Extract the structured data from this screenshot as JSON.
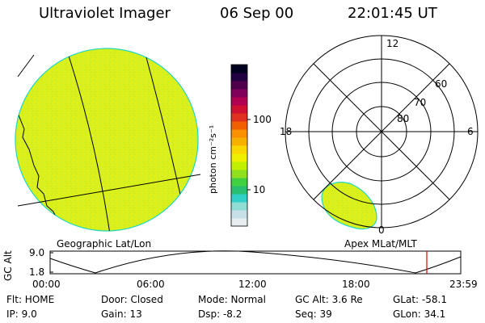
{
  "header": {
    "title": "Ultraviolet Imager",
    "date": "06 Sep 00",
    "time": "22:01:45 UT"
  },
  "colorbar": {
    "unit_label": "photon cm⁻²s⁻¹",
    "tick_100": "100",
    "tick_10": "10",
    "colors": [
      "#e8eef0",
      "#c8e0e8",
      "#90ddd6",
      "#30d0c8",
      "#28c070",
      "#40d040",
      "#90e020",
      "#c0f000",
      "#eef000",
      "#f8d800",
      "#f8b000",
      "#f89000",
      "#f06000",
      "#e03020",
      "#d01030",
      "#b00050",
      "#80005a",
      "#50004a",
      "#200040",
      "#000020"
    ]
  },
  "left_panel": {
    "caption": "Geographic Lat/Lon",
    "disk_fill": "#d8f020",
    "disk_edge": "#20d8c0"
  },
  "right_panel": {
    "caption": "Apex MLat/MLT",
    "mlt_12": "12",
    "mlt_18": "18",
    "mlt_6": "6",
    "mlt_0": "0",
    "lat_60": "60",
    "lat_70": "70",
    "lat_80": "80"
  },
  "altitude_plot": {
    "ylabel": "GC Alt",
    "y_top": "9.0",
    "y_bottom": "1.8",
    "x_ticks": [
      "00:00",
      "06:00",
      "12:00",
      "18:00",
      "23:59"
    ],
    "current_time_marker_color": "#e00000"
  },
  "info": {
    "flt": "Flt: HOME",
    "ip": "IP:  9.0",
    "door": "Door: Closed",
    "gain": "Gain: 13",
    "mode": "Mode: Normal",
    "dsp": "Dsp:   -8.2",
    "gcalt": "GC Alt: 3.6 Re",
    "seq": "Seq: 39",
    "glat": "GLat: -58.1",
    "glon": "GLon:  34.1"
  }
}
